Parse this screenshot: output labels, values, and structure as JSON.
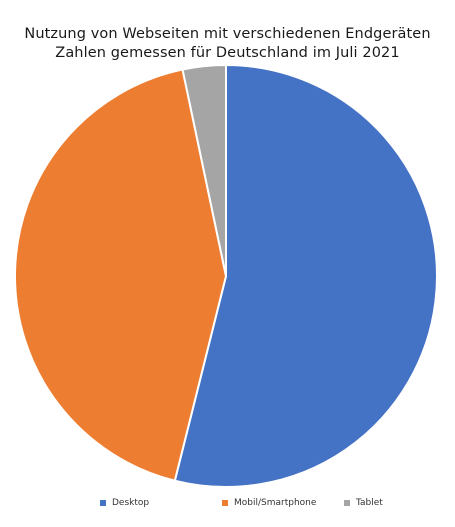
{
  "chart_data": {
    "type": "pie",
    "title": "Nutzung von Webseiten mit verschiedenen Endgeräten",
    "subtitle": "Zahlen gemessen für Deutschland im Juli 2021",
    "categories": [
      "Desktop",
      "Mobil/Smartphone",
      "Tablet"
    ],
    "values": [
      53.9,
      42.8,
      3.3
    ],
    "colors": [
      "#4472c4",
      "#ed7d31",
      "#a5a5a5"
    ],
    "legend": "bottom",
    "start_angle_deg": 0,
    "direction": "clockwise"
  }
}
